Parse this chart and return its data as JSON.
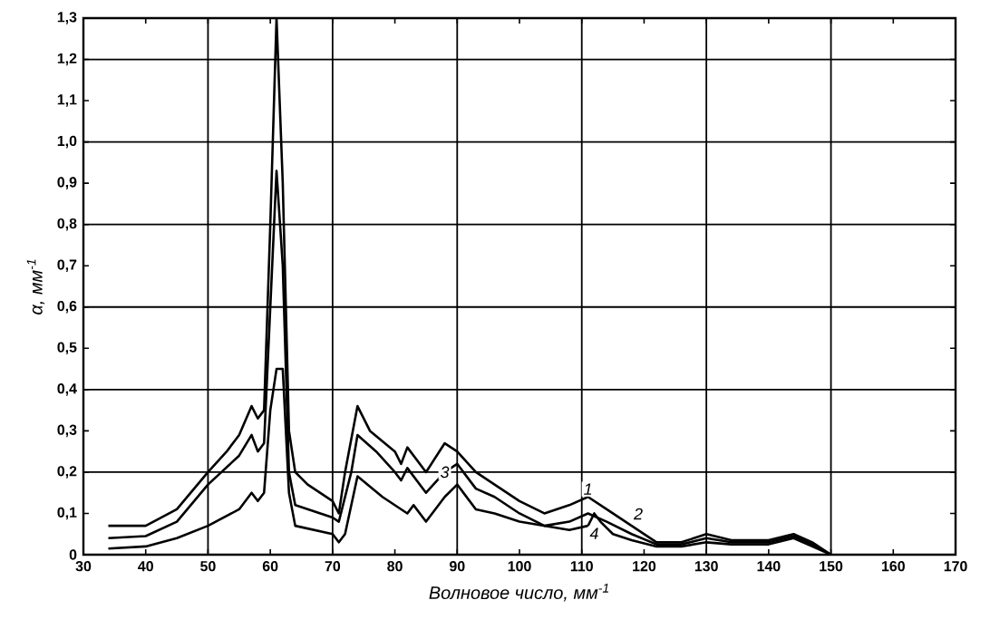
{
  "chart_data": {
    "type": "line",
    "xlabel": "Волновое число, мм$^{-1}$",
    "ylabel": "α, мм$^{-1}$",
    "xlim": [
      30,
      170
    ],
    "ylim": [
      0,
      1.3
    ],
    "xticks": [
      30,
      40,
      50,
      60,
      70,
      80,
      90,
      100,
      110,
      120,
      130,
      140,
      150,
      160,
      170
    ],
    "yticks": [
      0,
      {
        "value": 0.1,
        "label": "0,1"
      },
      {
        "value": 0.2,
        "label": "0,2"
      },
      {
        "value": 0.3,
        "label": "0,3"
      },
      {
        "value": 0.4,
        "label": "0,4"
      },
      {
        "value": 0.5,
        "label": "0,5"
      },
      {
        "value": 0.6,
        "label": "0,6"
      },
      {
        "value": 0.7,
        "label": "0,7"
      },
      {
        "value": 0.8,
        "label": "0,8"
      },
      {
        "value": 0.9,
        "label": "0,9"
      },
      {
        "value": 1.0,
        "label": "1,0"
      },
      {
        "value": 1.1,
        "label": "1,1"
      },
      {
        "value": 1.2,
        "label": "1,2"
      },
      {
        "value": 1.3,
        "label": "1,3"
      }
    ],
    "grid": true,
    "legend": false,
    "marker": "none",
    "line_style": "solid",
    "series": [
      {
        "name": "1",
        "color": "#000000",
        "x": [
          34,
          40,
          45,
          50,
          53,
          55,
          57,
          58,
          59,
          60,
          61,
          62,
          63,
          64,
          66,
          70,
          71,
          72,
          74,
          76,
          80,
          81,
          82,
          85,
          88,
          90,
          93,
          96,
          100,
          104,
          108,
          111,
          114,
          118,
          122,
          126,
          130,
          134,
          140,
          144,
          147,
          150
        ],
        "values": [
          0.07,
          0.07,
          0.11,
          0.2,
          0.25,
          0.29,
          0.36,
          0.33,
          0.35,
          0.8,
          1.3,
          0.9,
          0.3,
          0.2,
          0.17,
          0.13,
          0.1,
          0.2,
          0.36,
          0.3,
          0.25,
          0.22,
          0.26,
          0.2,
          0.27,
          0.25,
          0.2,
          0.17,
          0.13,
          0.1,
          0.12,
          0.14,
          0.11,
          0.07,
          0.03,
          0.03,
          0.05,
          0.035,
          0.035,
          0.05,
          0.03,
          0.0
        ]
      },
      {
        "name": "3",
        "color": "#000000",
        "x": [
          34,
          40,
          45,
          50,
          55,
          57,
          58,
          59,
          60,
          61,
          62,
          63,
          64,
          70,
          71,
          73,
          74,
          77,
          80,
          81,
          82,
          85,
          88,
          90,
          93,
          96,
          100,
          104,
          108,
          111,
          114,
          118,
          122,
          126,
          130,
          134,
          140,
          144,
          147,
          150
        ],
        "values": [
          0.04,
          0.045,
          0.08,
          0.17,
          0.24,
          0.29,
          0.25,
          0.27,
          0.6,
          0.93,
          0.7,
          0.2,
          0.12,
          0.09,
          0.08,
          0.2,
          0.29,
          0.25,
          0.2,
          0.18,
          0.21,
          0.15,
          0.2,
          0.22,
          0.16,
          0.14,
          0.1,
          0.07,
          0.08,
          0.1,
          0.08,
          0.05,
          0.025,
          0.025,
          0.04,
          0.03,
          0.03,
          0.045,
          0.025,
          0.0
        ]
      },
      {
        "name": "4",
        "color": "#000000",
        "x": [
          34,
          40,
          45,
          50,
          55,
          57,
          58,
          59,
          60,
          61,
          62,
          63,
          64,
          70,
          71,
          72,
          74,
          78,
          82,
          83,
          85,
          88,
          90,
          93,
          96,
          100,
          104,
          108,
          111,
          112,
          113,
          115,
          118,
          122,
          126,
          130,
          134,
          140,
          144,
          147,
          150
        ],
        "values": [
          0.015,
          0.02,
          0.04,
          0.07,
          0.11,
          0.15,
          0.13,
          0.15,
          0.35,
          0.45,
          0.45,
          0.15,
          0.07,
          0.05,
          0.03,
          0.05,
          0.19,
          0.14,
          0.1,
          0.12,
          0.08,
          0.14,
          0.17,
          0.11,
          0.1,
          0.08,
          0.07,
          0.06,
          0.07,
          0.1,
          0.08,
          0.05,
          0.035,
          0.02,
          0.02,
          0.03,
          0.025,
          0.025,
          0.04,
          0.02,
          0.0
        ]
      }
    ],
    "annotations": [
      {
        "text": "2",
        "x": 118,
        "y": 0.08
      }
    ]
  }
}
